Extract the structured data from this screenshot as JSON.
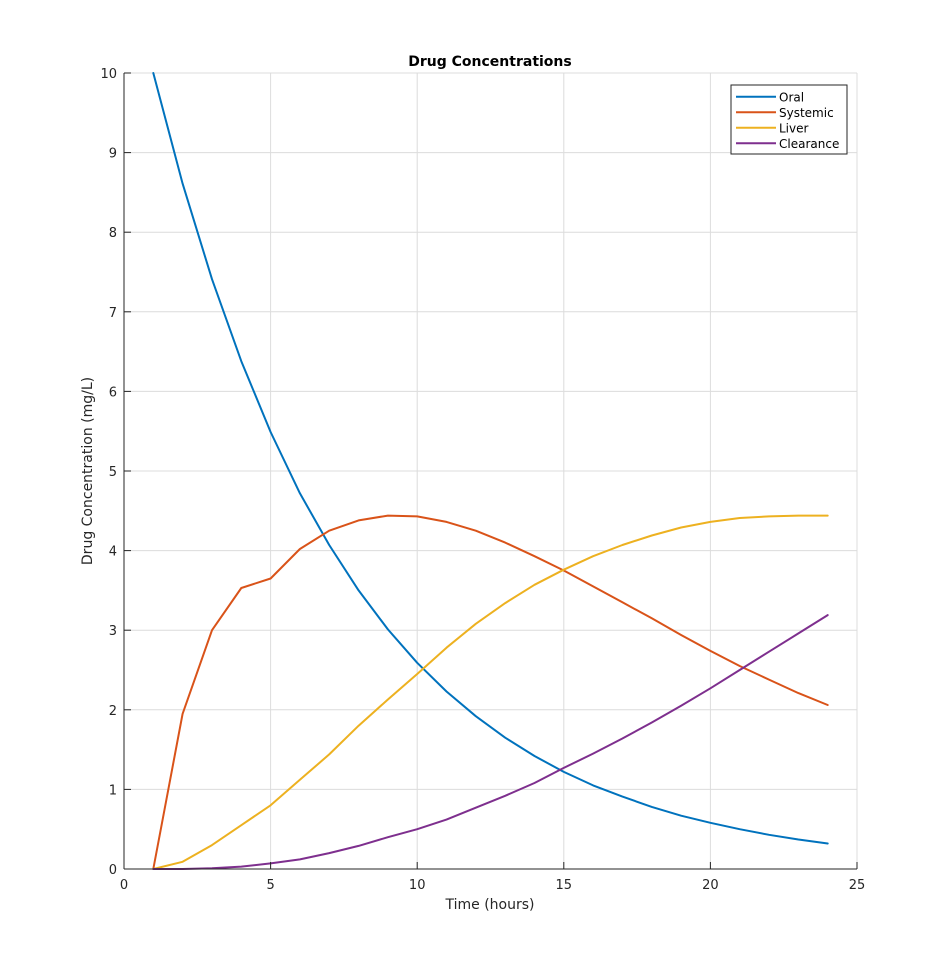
{
  "chart_data": {
    "type": "line",
    "title": "Drug Concentrations",
    "xlabel": "Time (hours)",
    "ylabel": "Drug Concentration (mg/L)",
    "xlim": [
      0,
      25
    ],
    "ylim": [
      0,
      10
    ],
    "xticks": [
      0,
      5,
      10,
      15,
      20,
      25
    ],
    "yticks": [
      0,
      1,
      2,
      3,
      4,
      5,
      6,
      7,
      8,
      9,
      10
    ],
    "grid": true,
    "legend_position": "top-right",
    "x": [
      1,
      2,
      3,
      4,
      5,
      6,
      7,
      8,
      9,
      10,
      11,
      12,
      13,
      14,
      15,
      16,
      17,
      18,
      19,
      20,
      21,
      22,
      23,
      24
    ],
    "series": [
      {
        "name": "Oral",
        "color": "#0072BD",
        "values": [
          10.0,
          8.61,
          7.41,
          6.38,
          5.49,
          4.72,
          4.07,
          3.5,
          3.01,
          2.59,
          2.23,
          1.92,
          1.65,
          1.42,
          1.22,
          1.05,
          0.91,
          0.78,
          0.67,
          0.58,
          0.5,
          0.43,
          0.37,
          0.32
        ]
      },
      {
        "name": "Systemic",
        "color": "#D95319",
        "values": [
          0.0,
          1.95,
          3.0,
          3.53,
          3.65,
          4.02,
          4.25,
          4.38,
          4.44,
          4.43,
          4.36,
          4.25,
          4.1,
          3.93,
          3.75,
          3.55,
          3.35,
          3.15,
          2.94,
          2.74,
          2.55,
          2.38,
          2.21,
          2.06
        ]
      },
      {
        "name": "Liver",
        "color": "#EDB120",
        "values": [
          0.0,
          0.09,
          0.3,
          0.55,
          0.8,
          1.12,
          1.44,
          1.8,
          2.13,
          2.45,
          2.78,
          3.08,
          3.34,
          3.57,
          3.76,
          3.93,
          4.07,
          4.19,
          4.29,
          4.36,
          4.41,
          4.43,
          4.44,
          4.44
        ]
      },
      {
        "name": "Clearance",
        "color": "#7E2F8E",
        "values": [
          0.0,
          0.0,
          0.01,
          0.03,
          0.07,
          0.12,
          0.2,
          0.29,
          0.4,
          0.5,
          0.62,
          0.77,
          0.92,
          1.08,
          1.27,
          1.45,
          1.64,
          1.84,
          2.05,
          2.27,
          2.5,
          2.73,
          2.96,
          3.19
        ]
      }
    ]
  }
}
